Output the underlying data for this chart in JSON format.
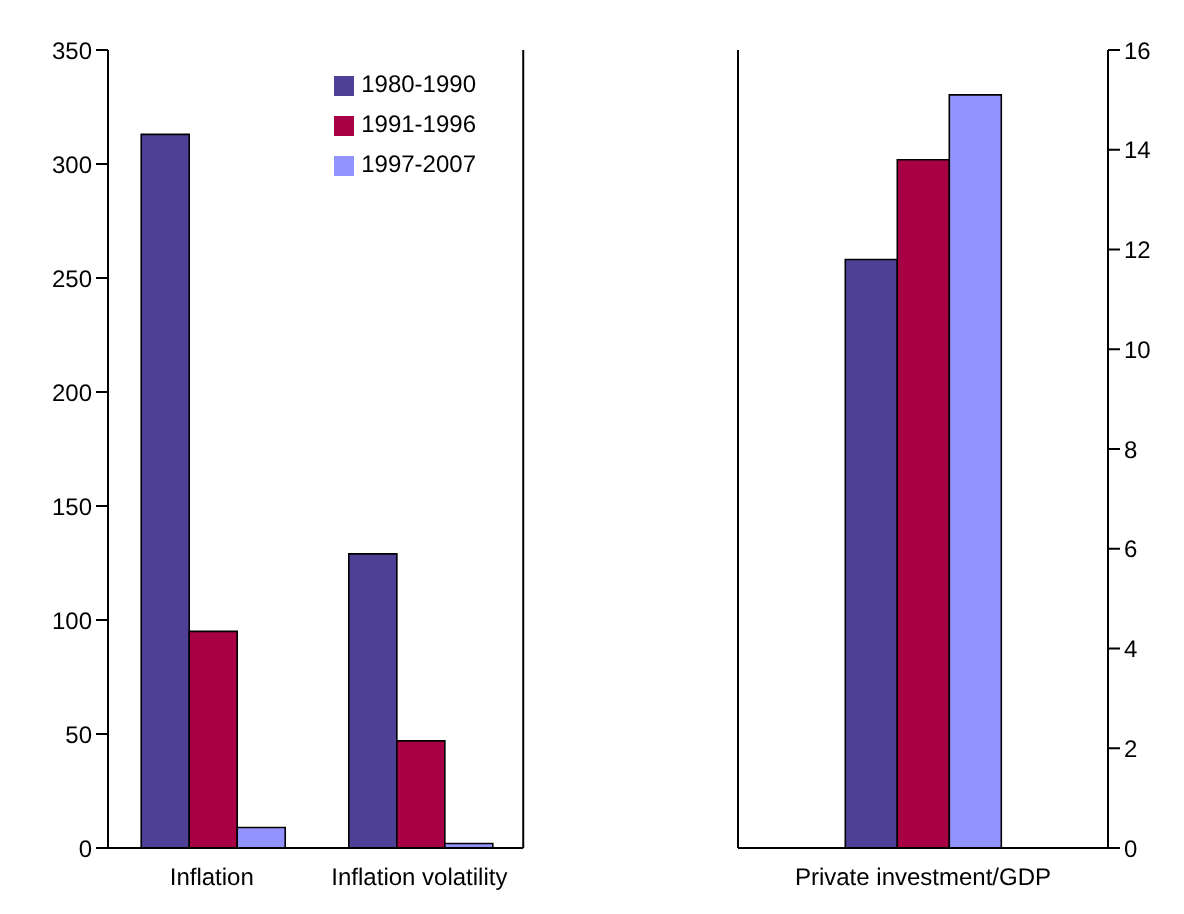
{
  "chart_data": [
    {
      "type": "bar",
      "categories": [
        "Inflation",
        "Inflation volatility"
      ],
      "ylim": [
        0,
        350
      ],
      "yticks": [
        0,
        50,
        100,
        150,
        200,
        250,
        300,
        350
      ],
      "legend": "top right",
      "grid": false,
      "series": [
        {
          "name": "1980-1990",
          "color": "#4e3f97",
          "values": [
            313,
            129
          ]
        },
        {
          "name": "1991-1996",
          "color": "#a80045",
          "values": [
            95,
            47
          ]
        },
        {
          "name": "1997-2007",
          "color": "#9393ff",
          "values": [
            9,
            2
          ]
        }
      ]
    },
    {
      "type": "bar",
      "categories": [
        "Private investment/GDP"
      ],
      "y2lim": [
        0,
        16
      ],
      "y2ticks": [
        0,
        2,
        4,
        6,
        8,
        10,
        12,
        14,
        16
      ],
      "grid": false,
      "series": [
        {
          "color": "#4e3f97",
          "values": [
            11.8
          ],
          "axis": "y2"
        },
        {
          "color": "#a80045",
          "values": [
            13.8
          ],
          "axis": "y2"
        },
        {
          "color": "#9393ff",
          "values": [
            15.1
          ],
          "axis": "y2"
        }
      ]
    }
  ]
}
